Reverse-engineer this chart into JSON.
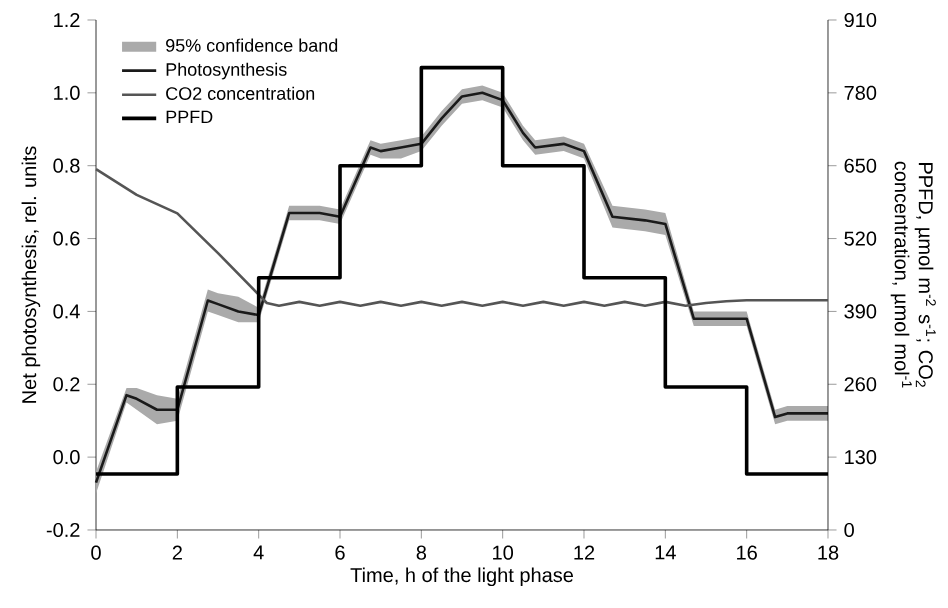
{
  "chart_data": {
    "type": "line",
    "xlabel": "Time, h of the light phase",
    "ylabel": "Net photosynthesis, rel. units",
    "y2label": "PPFD, µmol m$^{-2}$ s$^{-1}$; CO$_{2}$ concentration, µmol mol$^{-1}$",
    "annotations": [
      "95% confidence band"
    ],
    "xlim": [
      0,
      18
    ],
    "xticks": [
      0,
      2,
      4,
      6,
      8,
      10,
      12,
      14,
      16,
      18
    ],
    "ylim": [
      -0.2,
      1.2
    ],
    "yticks": [
      -0.2,
      {
        "value": 0,
        "label": "0.0"
      },
      0.2,
      0.4,
      0.6,
      0.8,
      {
        "value": 1,
        "label": "1.0"
      },
      1.2
    ],
    "y2lim": [
      0,
      910
    ],
    "y2ticks": [
      0,
      130,
      260,
      390,
      520,
      650,
      780,
      910
    ],
    "legend": "top left",
    "grid": false,
    "marker": "none",
    "series": [
      {
        "name": "Photosynthesis",
        "color": "#1a1a1a",
        "x": [
          0,
          0.75,
          1,
          1.5,
          2,
          2.75,
          3,
          3.5,
          4,
          4.75,
          5,
          5.5,
          6,
          6.75,
          7,
          7.5,
          8,
          8.5,
          9,
          9.5,
          10,
          10.5,
          10.8,
          11.5,
          12,
          12.7,
          13.5,
          14,
          14.7,
          15,
          16,
          16.7,
          17,
          18
        ],
        "values": [
          -0.07,
          0.17,
          0.16,
          0.13,
          0.13,
          0.43,
          0.42,
          0.4,
          0.39,
          0.67,
          0.67,
          0.67,
          0.66,
          0.85,
          0.84,
          0.85,
          0.86,
          0.93,
          0.99,
          1.0,
          0.98,
          0.89,
          0.85,
          0.86,
          0.84,
          0.66,
          0.65,
          0.64,
          0.38,
          0.38,
          0.38,
          0.11,
          0.12,
          0.12
        ],
        "lower": [
          -0.1,
          0.15,
          0.13,
          0.09,
          0.1,
          0.4,
          0.39,
          0.37,
          0.37,
          0.65,
          0.65,
          0.65,
          0.64,
          0.83,
          0.82,
          0.82,
          0.84,
          0.91,
          0.97,
          0.98,
          0.96,
          0.87,
          0.83,
          0.84,
          0.82,
          0.63,
          0.62,
          0.61,
          0.36,
          0.36,
          0.36,
          0.09,
          0.1,
          0.1
        ],
        "upper": [
          -0.04,
          0.19,
          0.19,
          0.17,
          0.16,
          0.46,
          0.45,
          0.44,
          0.41,
          0.69,
          0.69,
          0.69,
          0.68,
          0.87,
          0.86,
          0.87,
          0.88,
          0.95,
          1.01,
          1.02,
          1.0,
          0.91,
          0.87,
          0.88,
          0.86,
          0.69,
          0.68,
          0.67,
          0.4,
          0.4,
          0.4,
          0.13,
          0.14,
          0.14
        ]
      },
      {
        "name": "CO2 concentration",
        "axis": "y2",
        "color": "#555555",
        "x": [
          0,
          1,
          2,
          3,
          4,
          4.2,
          4.5,
          5,
          5.5,
          6,
          6.5,
          7,
          7.5,
          8,
          8.5,
          9,
          9.5,
          10,
          10.5,
          11,
          11.5,
          12,
          12.5,
          13,
          13.5,
          14,
          14.5,
          15,
          15.5,
          16,
          17,
          18
        ],
        "values": [
          644,
          598,
          565,
          494,
          420,
          405,
          400,
          407,
          400,
          407,
          400,
          407,
          400,
          407,
          400,
          407,
          400,
          407,
          400,
          407,
          400,
          407,
          400,
          407,
          400,
          407,
          400,
          405,
          408,
          410,
          410,
          410
        ]
      },
      {
        "name": "PPFD",
        "type": "step",
        "axis": "y2",
        "color": "#000000",
        "x": [
          0,
          2,
          4,
          6,
          8,
          10,
          12,
          14,
          16,
          18
        ],
        "values": [
          100,
          255,
          450,
          650,
          825,
          650,
          450,
          255,
          100,
          100
        ]
      }
    ]
  }
}
